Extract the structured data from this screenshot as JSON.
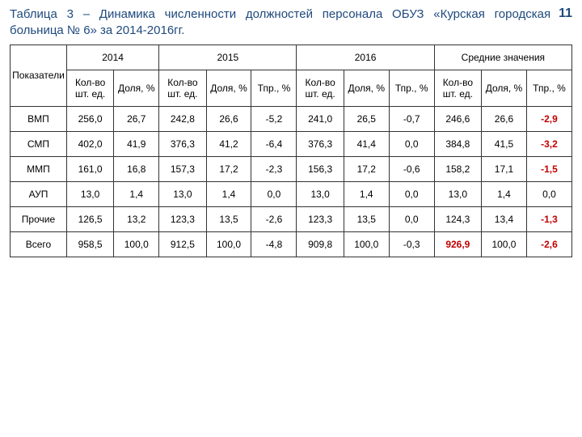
{
  "page_number": "11",
  "title": "Таблица 3 – Динамика численности должностей персонала ОБУЗ «Курская городская больница № 6» за 2014-2016гг.",
  "headers": {
    "indicators": "Показатели",
    "y2014": "2014",
    "y2015": "2015",
    "y2016": "2016",
    "avg": "Средние значения",
    "count": "Кол-во шт. ед.",
    "count_avg": "Кол-во шт. ед.",
    "share": "Доля, %",
    "tpr": "Тпр., %"
  },
  "rows": [
    {
      "label": "ВМП",
      "c2014_cnt": "256,0",
      "c2014_sh": "26,7",
      "c2015_cnt": "242,8",
      "c2015_sh": "26,6",
      "c2015_tpr": "-5,2",
      "c2016_cnt": "241,0",
      "c2016_sh": "26,5",
      "c2016_tpr": "-0,7",
      "avg_cnt": "246,6",
      "avg_sh": "26,6",
      "avg_tpr": "-2,9",
      "avg_tpr_red": true
    },
    {
      "label": "СМП",
      "c2014_cnt": "402,0",
      "c2014_sh": "41,9",
      "c2015_cnt": "376,3",
      "c2015_sh": "41,2",
      "c2015_tpr": "-6,4",
      "c2016_cnt": "376,3",
      "c2016_sh": "41,4",
      "c2016_tpr": "0,0",
      "avg_cnt": "384,8",
      "avg_sh": "41,5",
      "avg_tpr": "-3,2",
      "avg_tpr_red": true
    },
    {
      "label": "ММП",
      "c2014_cnt": "161,0",
      "c2014_sh": "16,8",
      "c2015_cnt": "157,3",
      "c2015_sh": "17,2",
      "c2015_tpr": "-2,3",
      "c2016_cnt": "156,3",
      "c2016_sh": "17,2",
      "c2016_tpr": "-0,6",
      "avg_cnt": "158,2",
      "avg_sh": "17,1",
      "avg_tpr": "-1,5",
      "avg_tpr_red": true
    },
    {
      "label": "АУП",
      "c2014_cnt": "13,0",
      "c2014_sh": "1,4",
      "c2015_cnt": "13,0",
      "c2015_sh": "1,4",
      "c2015_tpr": "0,0",
      "c2016_cnt": "13,0",
      "c2016_sh": "1,4",
      "c2016_tpr": "0,0",
      "avg_cnt": "13,0",
      "avg_sh": "1,4",
      "avg_tpr": "0,0",
      "avg_tpr_red": false
    },
    {
      "label": "Прочие",
      "c2014_cnt": "126,5",
      "c2014_sh": "13,2",
      "c2015_cnt": "123,3",
      "c2015_sh": "13,5",
      "c2015_tpr": "-2,6",
      "c2016_cnt": "123,3",
      "c2016_sh": "13,5",
      "c2016_tpr": "0,0",
      "avg_cnt": "124,3",
      "avg_sh": "13,4",
      "avg_tpr": "-1,3",
      "avg_tpr_red": true
    },
    {
      "label": "Всего",
      "c2014_cnt": "958,5",
      "c2014_sh": "100,0",
      "c2015_cnt": "912,5",
      "c2015_sh": "100,0",
      "c2015_tpr": "-4,8",
      "c2016_cnt": "909,8",
      "c2016_sh": "100,0",
      "c2016_tpr": "-0,3",
      "avg_cnt": "926,9",
      "avg_cnt_red": true,
      "avg_sh": "100,0",
      "avg_tpr": "-2,6",
      "avg_tpr_red": true
    }
  ]
}
